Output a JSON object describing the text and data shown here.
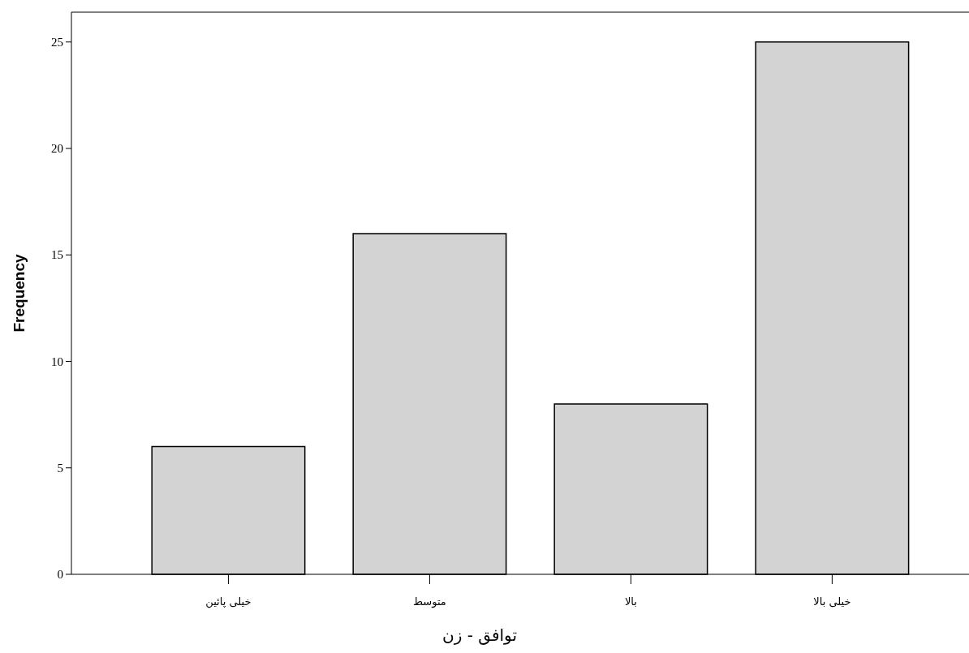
{
  "chart_data": {
    "type": "bar",
    "categories": [
      "خیلی پائین",
      "متوسط",
      "بالا",
      "خیلی بالا"
    ],
    "values": [
      6,
      16,
      8,
      25
    ],
    "color": "#d3d3d3",
    "xlabel": "توافق - زن",
    "ylabel": "Frequency",
    "ylim": [
      0,
      26.4
    ],
    "yticks": [
      0,
      5,
      10,
      15,
      20,
      25
    ]
  }
}
